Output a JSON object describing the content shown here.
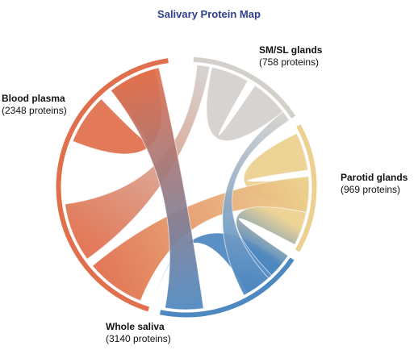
{
  "title": "Salivary Protein Map",
  "groups": [
    {
      "id": "blood",
      "name": "Blood plasma",
      "count_label": "(2348 proteins)",
      "color": "#e0704d"
    },
    {
      "id": "smsl",
      "name": "SM/SL glands",
      "count_label": "(758 proteins)",
      "color": "#d3d0cc"
    },
    {
      "id": "parotid",
      "name": "Parotid glands",
      "count_label": "(969 proteins)",
      "color": "#ecd08e"
    },
    {
      "id": "whole",
      "name": "Whole saliva",
      "count_label": "(3140 proteins)",
      "color": "#4d88c0"
    }
  ]
}
